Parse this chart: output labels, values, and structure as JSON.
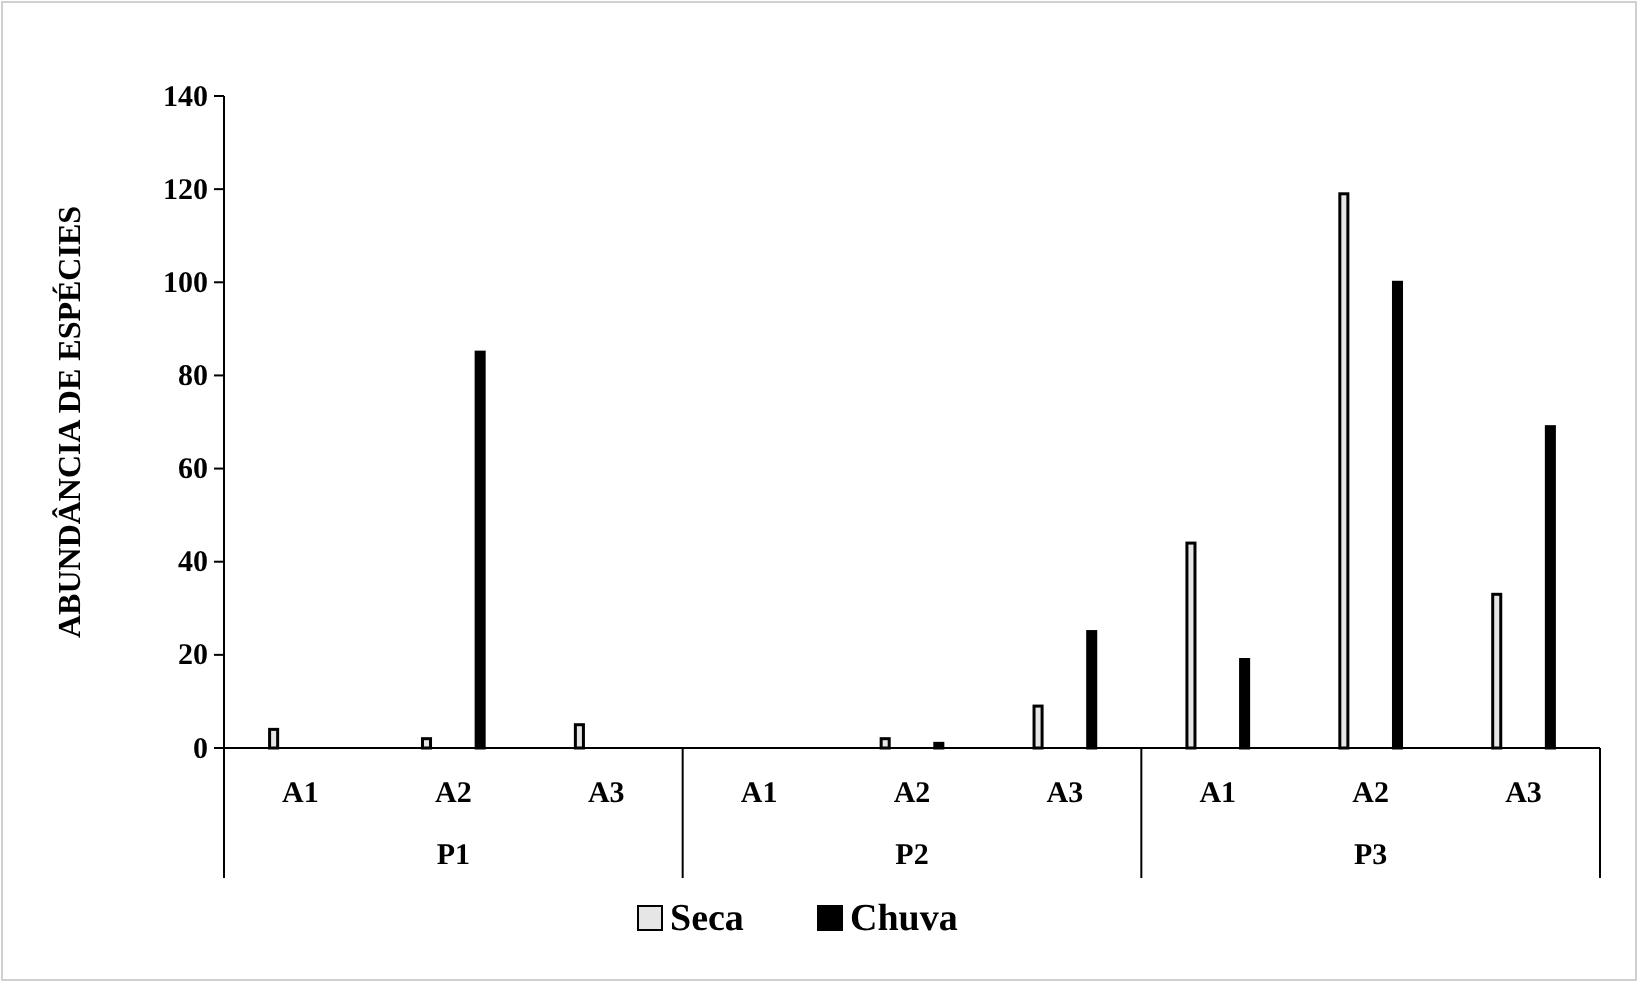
{
  "chart_data": {
    "type": "bar",
    "ylabel": "ABUNDÂNCIA DE ESPÉCIES",
    "categories": [
      "A1",
      "A2",
      "A3",
      "A1",
      "A2",
      "A3",
      "A1",
      "A2",
      "A3"
    ],
    "series": [
      {
        "name": "Seca",
        "color": "#e6e6e6",
        "values": [
          4,
          2,
          5,
          0,
          2,
          9,
          44,
          119,
          33
        ]
      },
      {
        "name": "Chuva",
        "color": "#000000",
        "values": [
          0,
          85,
          0,
          0,
          1,
          25,
          19,
          100,
          69
        ]
      }
    ],
    "annotations": [
      "P1",
      "P2",
      "P3"
    ],
    "ylim": [
      0,
      140
    ],
    "yticks": [
      0,
      20,
      40,
      60,
      80,
      100,
      120,
      140
    ],
    "grid": false,
    "legend": "bottom"
  }
}
